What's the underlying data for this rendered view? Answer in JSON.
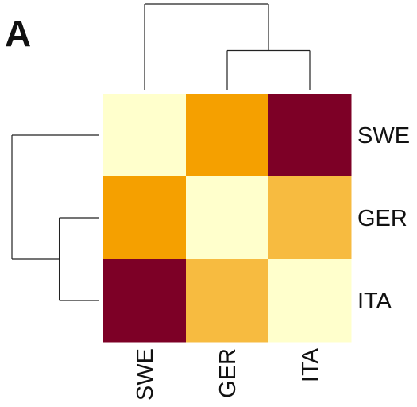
{
  "panel_label": "A",
  "chart_data": {
    "type": "heatmap",
    "title": "",
    "row_labels": [
      "SWE",
      "GER",
      "ITA"
    ],
    "col_labels": [
      "SWE",
      "GER",
      "ITA"
    ],
    "values": [
      [
        0.0,
        0.55,
        1.0
      ],
      [
        0.55,
        0.0,
        0.4
      ],
      [
        1.0,
        0.4,
        0.0
      ]
    ],
    "value_range": [
      0,
      1
    ],
    "colors": {
      "0.0": "#ffffcc",
      "0.4": "#f7bb40",
      "0.55": "#f5a000",
      "1.0": "#7d0026"
    },
    "row_dendrogram": {
      "placement": "left",
      "merges": [
        {
          "members": [
            "GER",
            "ITA"
          ],
          "height": 0.55
        },
        {
          "members": [
            "SWE",
            "GER-ITA"
          ],
          "height": 1.2
        }
      ]
    },
    "col_dendrogram": {
      "placement": "top",
      "merges": [
        {
          "members": [
            "GER",
            "ITA"
          ],
          "height": 0.55
        },
        {
          "members": [
            "SWE",
            "GER-ITA"
          ],
          "height": 1.2
        }
      ]
    }
  }
}
